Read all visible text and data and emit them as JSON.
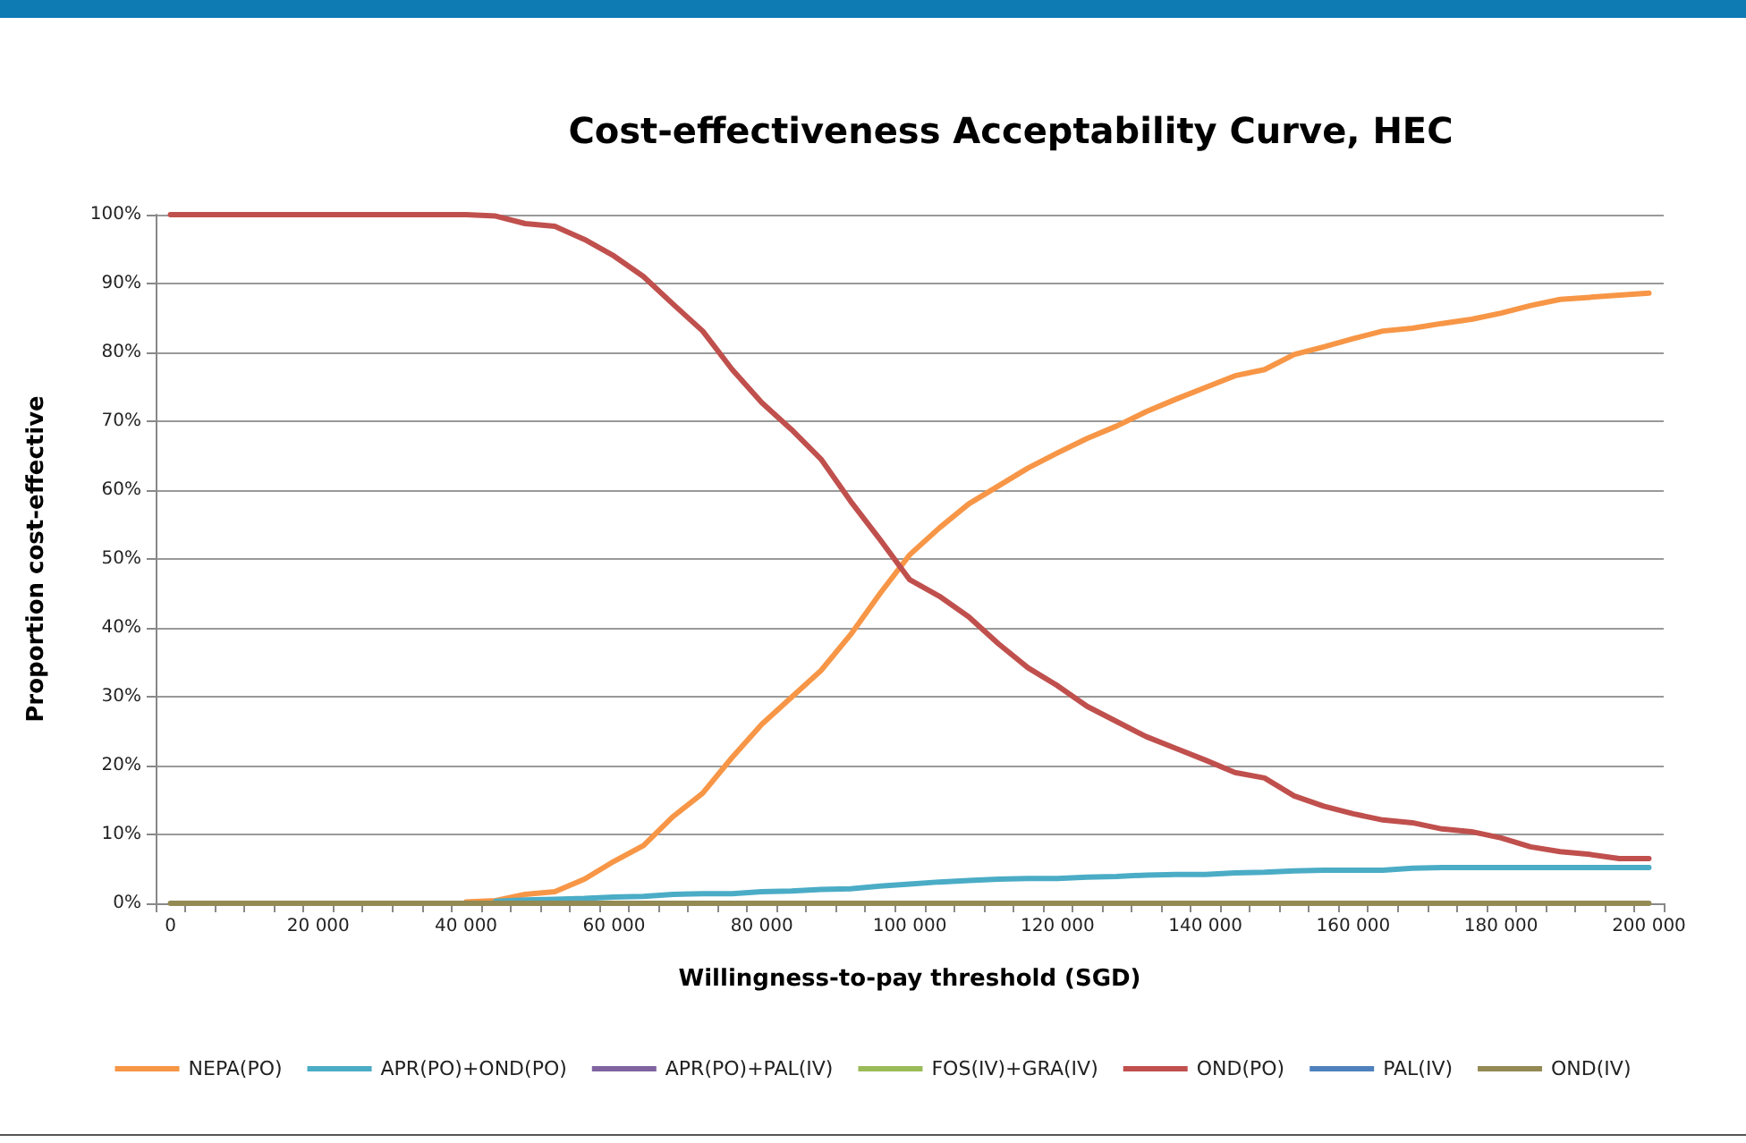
{
  "chart_data": {
    "type": "line",
    "title": "Cost-effectiveness Acceptability Curve, HEC",
    "xlabel": "Willingness-to-pay threshold (SGD)",
    "ylabel": "Proportion cost-effective",
    "categories": [
      "0",
      null,
      null,
      null,
      null,
      "20 000",
      null,
      null,
      null,
      null,
      "40 000",
      null,
      null,
      null,
      null,
      "60 000",
      null,
      null,
      null,
      null,
      "80 000",
      null,
      null,
      null,
      null,
      "100 000",
      null,
      null,
      null,
      null,
      "120 000",
      null,
      null,
      null,
      null,
      "140 000",
      null,
      null,
      null,
      null,
      "160 000",
      null,
      null,
      null,
      null,
      "180 000",
      null,
      null,
      null,
      null,
      "200 000"
    ],
    "ylim": [
      0,
      100
    ],
    "yticks": [
      {
        "value": 0,
        "label": "0%"
      },
      {
        "value": 10,
        "label": "10%"
      },
      {
        "value": 20,
        "label": "20%"
      },
      {
        "value": 30,
        "label": "30%"
      },
      {
        "value": 40,
        "label": "40%"
      },
      {
        "value": 50,
        "label": "50%"
      },
      {
        "value": 60,
        "label": "60%"
      },
      {
        "value": 70,
        "label": "70%"
      },
      {
        "value": 80,
        "label": "80%"
      },
      {
        "value": 90,
        "label": "90%"
      },
      {
        "value": 100,
        "label": "100%"
      }
    ],
    "grid": "y",
    "legend": "bottom",
    "marker": "none",
    "line_style": "solid",
    "series": [
      {
        "name": "NEPA(PO)",
        "color": "#f79646",
        "values": [
          null,
          null,
          null,
          null,
          null,
          null,
          null,
          null,
          null,
          null,
          0.2,
          0.4,
          1.3,
          1.7,
          3.5,
          6.1,
          8.4,
          12.6,
          16,
          21.2,
          26,
          29.9,
          33.8,
          39,
          45,
          50.6,
          54.5,
          58,
          60.6,
          63.2,
          65.4,
          67.5,
          69.3,
          71.4,
          73.2,
          74.9,
          76.6,
          77.5,
          79.7,
          80.8,
          82,
          83.1,
          83.5,
          84.2,
          84.8,
          85.7,
          86.8,
          87.7,
          88,
          88.3,
          88.6
        ]
      },
      {
        "name": "APR(PO)+OND(PO)",
        "color": "#4bacc6",
        "values": [
          null,
          null,
          null,
          null,
          null,
          null,
          null,
          null,
          null,
          null,
          null,
          0.3,
          0.5,
          0.6,
          0.7,
          0.9,
          1.0,
          1.3,
          1.4,
          1.4,
          1.7,
          1.8,
          2.0,
          2.1,
          2.5,
          2.8,
          3.1,
          3.3,
          3.5,
          3.6,
          3.6,
          3.8,
          3.9,
          4.1,
          4.2,
          4.2,
          4.4,
          4.5,
          4.7,
          4.8,
          4.8,
          4.8,
          5.1,
          5.2,
          5.2,
          5.2,
          5.2,
          5.2,
          5.2,
          5.2,
          5.2
        ]
      },
      {
        "name": "APR(PO)+PAL(IV)",
        "color": "#8064a2",
        "values": [
          null,
          null,
          null,
          null,
          null,
          null,
          null,
          null,
          null,
          null,
          null,
          null,
          null,
          null,
          null,
          null,
          null,
          null,
          null,
          null,
          null,
          null,
          null,
          null,
          null,
          null,
          null,
          null,
          null,
          null,
          null,
          null,
          null,
          null,
          null,
          null,
          null,
          null,
          null,
          null,
          null,
          null,
          null,
          null,
          null,
          null,
          null,
          null,
          null,
          null,
          null
        ]
      },
      {
        "name": "FOS(IV)+GRA(IV)",
        "color": "#9bbb59",
        "values": [
          null,
          null,
          null,
          null,
          null,
          null,
          null,
          null,
          null,
          null,
          null,
          null,
          null,
          null,
          null,
          null,
          null,
          null,
          null,
          null,
          null,
          null,
          null,
          null,
          null,
          null,
          null,
          null,
          null,
          null,
          null,
          null,
          null,
          null,
          null,
          null,
          null,
          null,
          null,
          null,
          null,
          null,
          null,
          null,
          null,
          null,
          null,
          null,
          null,
          null,
          null
        ]
      },
      {
        "name": "OND(PO)",
        "color": "#c0504d",
        "values": [
          100,
          100,
          100,
          100,
          100,
          100,
          100,
          100,
          100,
          100,
          100,
          99.8,
          98.7,
          98.3,
          96.4,
          94,
          91,
          87,
          83.1,
          77.5,
          72.7,
          68.8,
          64.5,
          58.4,
          52.8,
          47,
          44.6,
          41.6,
          37.7,
          34.2,
          31.6,
          28.6,
          26.4,
          24.2,
          22.5,
          20.8,
          19,
          18.2,
          15.6,
          14.1,
          13,
          12.1,
          11.7,
          10.8,
          10.4,
          9.5,
          8.2,
          7.5,
          7.1,
          6.5,
          6.5
        ]
      },
      {
        "name": "PAL(IV)",
        "color": "#4f81bd",
        "values": [
          null,
          null,
          null,
          null,
          null,
          null,
          null,
          null,
          null,
          null,
          null,
          null,
          null,
          null,
          null,
          null,
          null,
          null,
          null,
          null,
          null,
          null,
          null,
          null,
          null,
          null,
          null,
          null,
          null,
          null,
          null,
          null,
          null,
          null,
          null,
          null,
          null,
          null,
          null,
          null,
          null,
          null,
          null,
          null,
          null,
          null,
          null,
          null,
          null,
          null,
          null
        ]
      },
      {
        "name": "OND(IV)",
        "color": "#948a54",
        "values": [
          0,
          0,
          0,
          0,
          0,
          0,
          0,
          0,
          0,
          0,
          0,
          0,
          0,
          0,
          0,
          0,
          0,
          0,
          0,
          0,
          0,
          0,
          0,
          0,
          0,
          0,
          0,
          0,
          0,
          0,
          0,
          0,
          0,
          0,
          0,
          0,
          0,
          0,
          0,
          0,
          0,
          0,
          0,
          0,
          0,
          0,
          0,
          0,
          0,
          0,
          0
        ]
      }
    ]
  }
}
